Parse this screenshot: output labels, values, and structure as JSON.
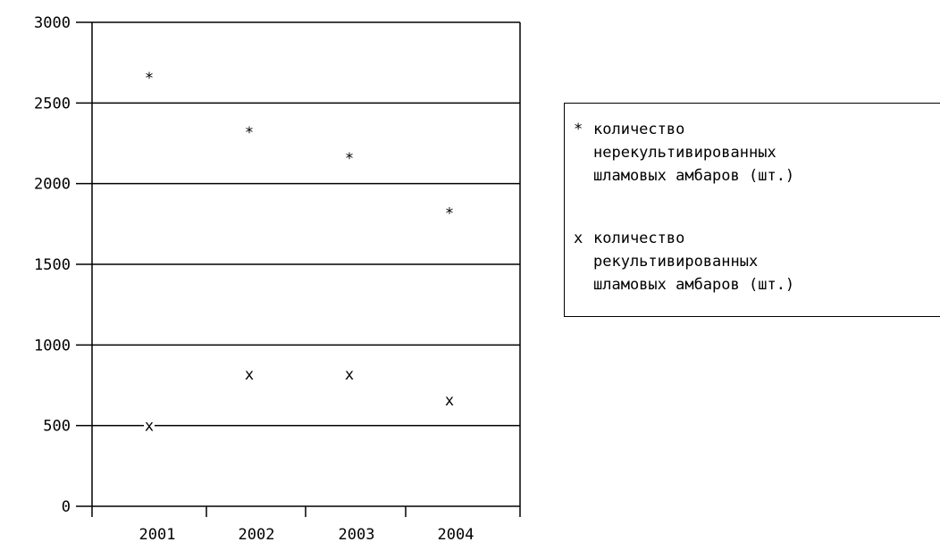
{
  "chart_data": {
    "type": "scatter",
    "categories": [
      "2001",
      "2002",
      "2003",
      "2004"
    ],
    "ylim": [
      0,
      3000
    ],
    "yticks": [
      0,
      500,
      1000,
      1500,
      2000,
      2500,
      3000
    ],
    "ytick_labels": [
      "0",
      "500",
      "1000",
      "1500",
      "2000",
      "2500",
      "3000"
    ],
    "grid": true,
    "legend_position": "right",
    "series": [
      {
        "name": "количество\nнерекультивированных\nшламовых амбаров (шт.)",
        "marker": "*",
        "values": [
          2680,
          2340,
          2180,
          1840
        ]
      },
      {
        "name": "количество\nрекультивированных\nшламовых амбаров (шт.)",
        "marker": "x",
        "values": [
          500,
          820,
          820,
          660
        ]
      }
    ]
  }
}
